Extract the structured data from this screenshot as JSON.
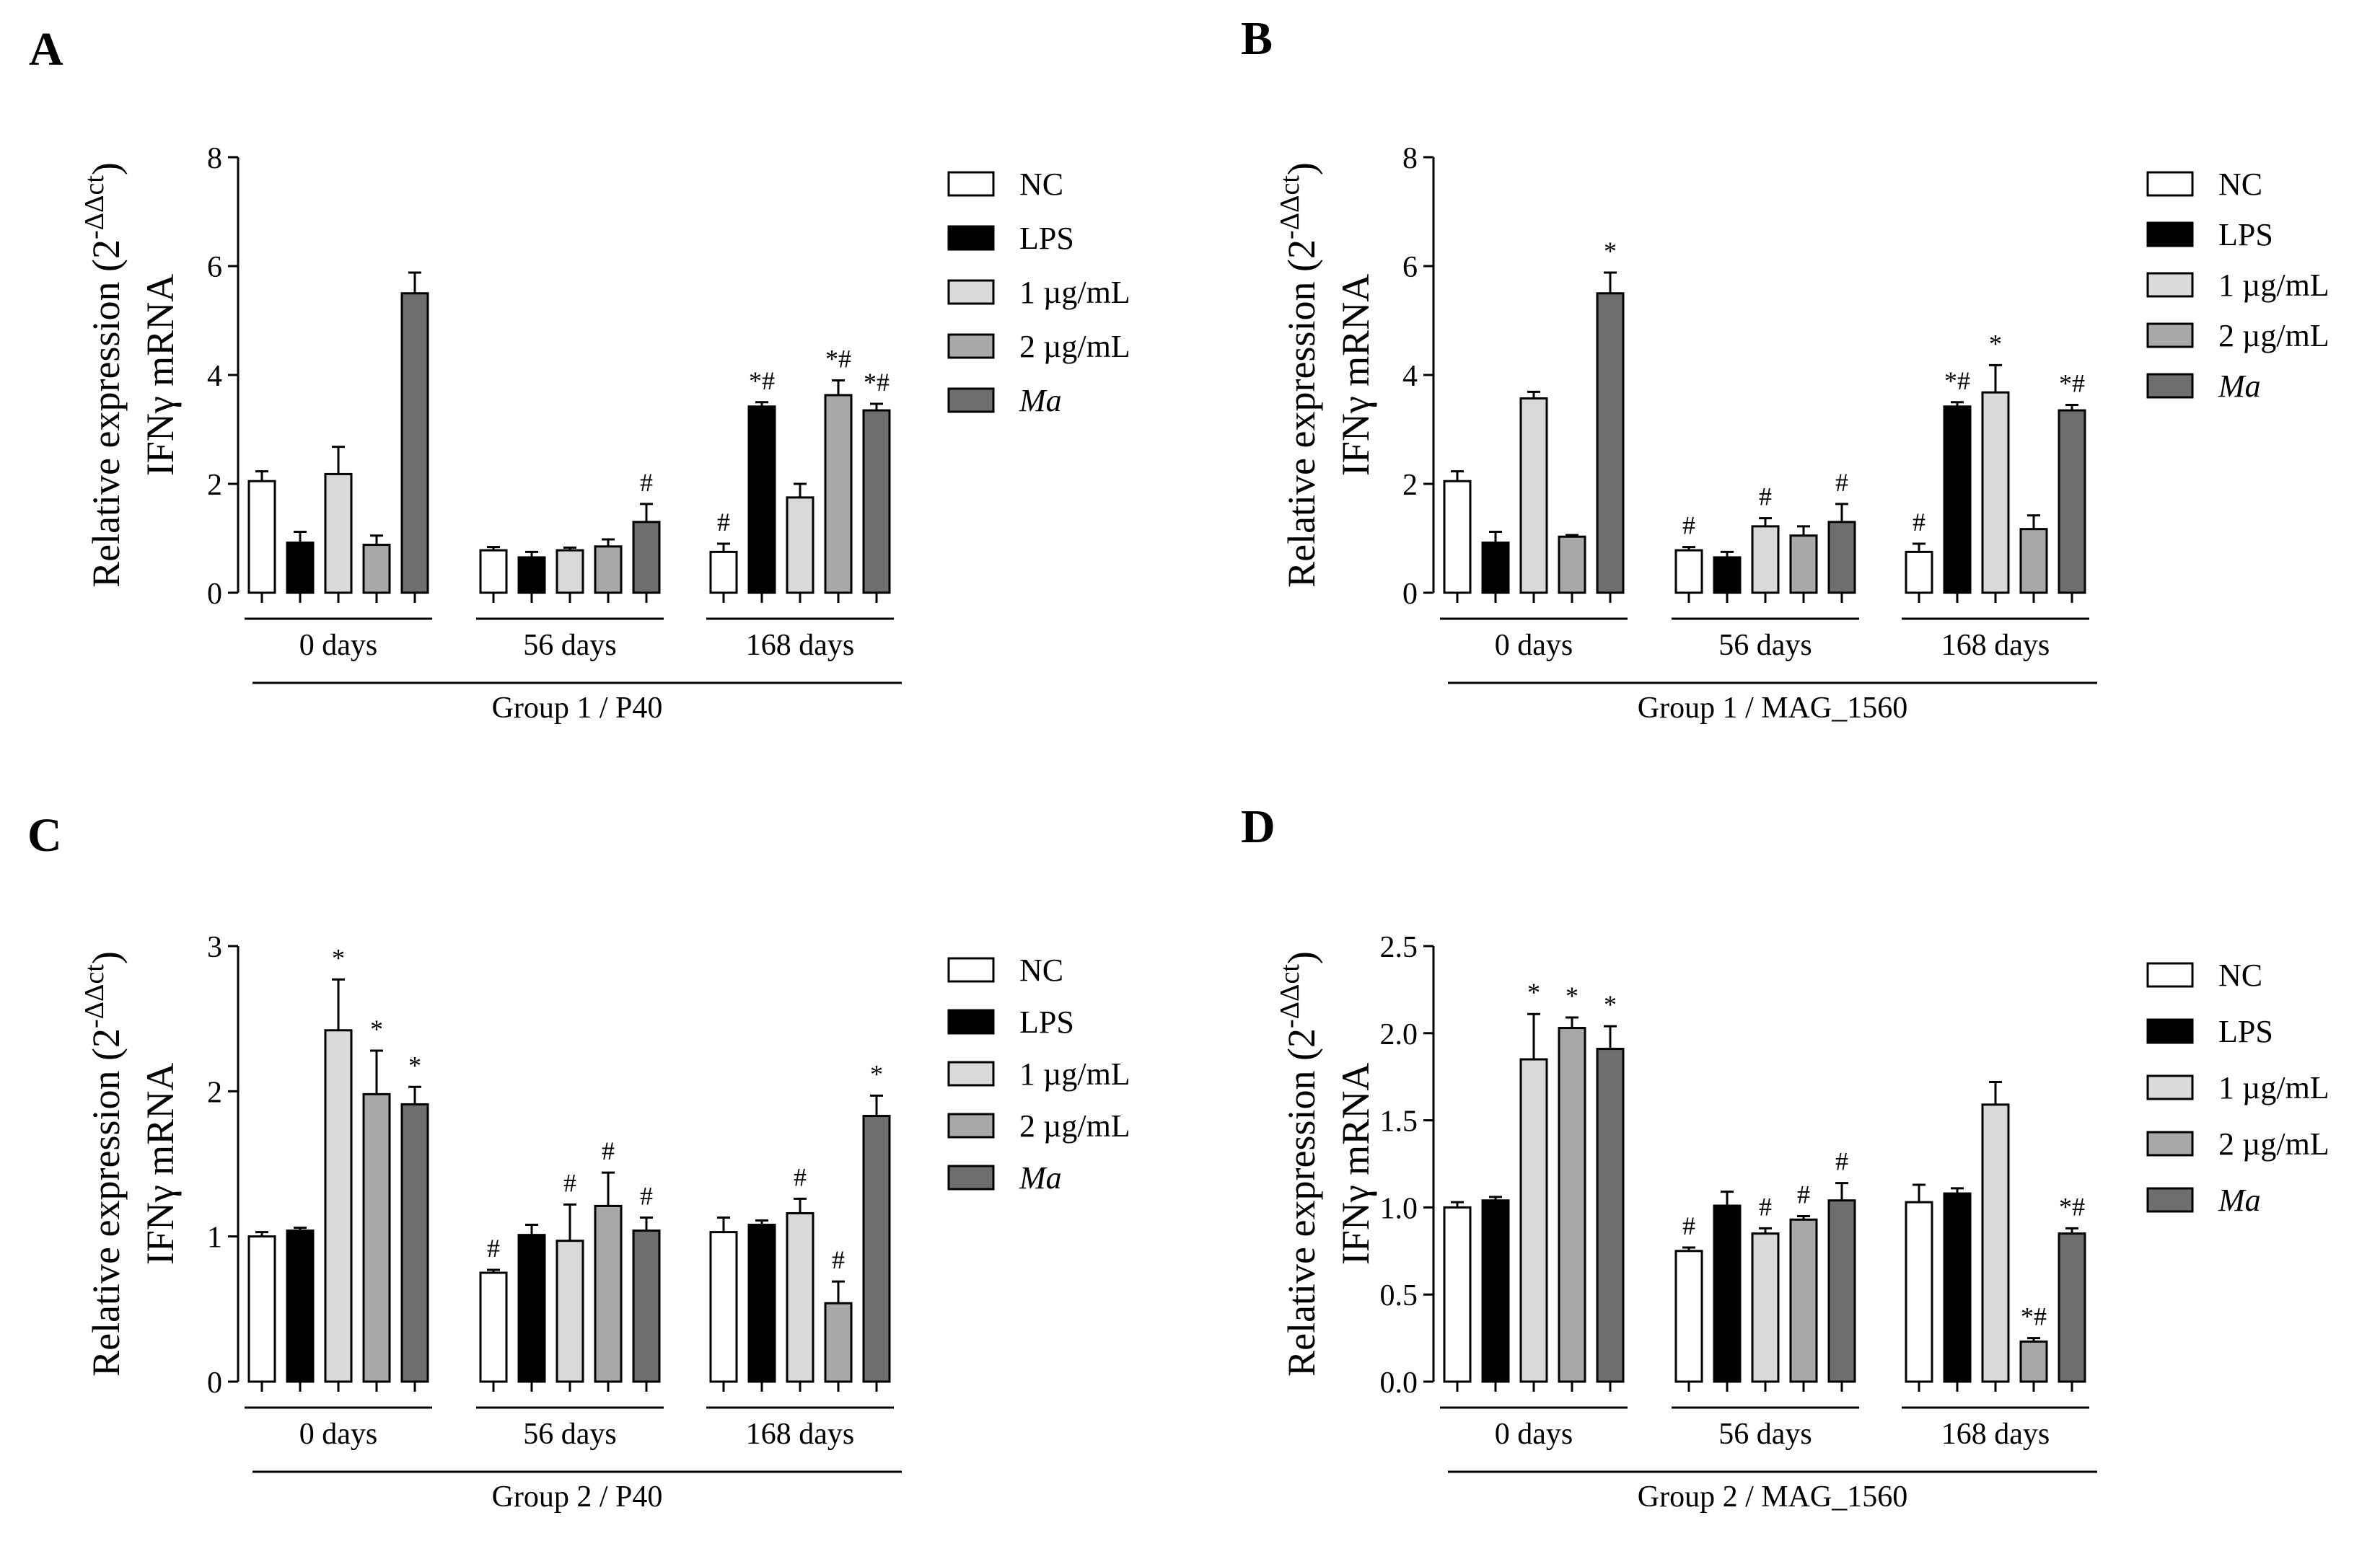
{
  "legend": [
    {
      "label": "NC",
      "color": "#ffffff",
      "italic": false
    },
    {
      "label": "LPS",
      "color": "#000000",
      "italic": false
    },
    {
      "label": "1 µg/mL",
      "color": "#d9d9d9",
      "italic": false
    },
    {
      "label": "2 µg/mL",
      "color": "#a8a8a8",
      "italic": false
    },
    {
      "label": "Ma",
      "color": "#6e6e6e",
      "italic": true
    }
  ],
  "chart_data": [
    {
      "panel": "A",
      "type": "bar",
      "ylabel_line1": "Relative expression (2",
      "ylabel_sup": "-ΔΔct",
      "ylabel_line1_end": ")",
      "ylabel_line2": "IFNγ mRNA",
      "ylim": [
        0,
        8
      ],
      "yticks": [
        "0",
        "2",
        "4",
        "6",
        "8"
      ],
      "tick_values": [
        0,
        2,
        4,
        6,
        8
      ],
      "categories": [
        "0 days",
        "56 days",
        "168 days"
      ],
      "group_label": "Group 1 / P40",
      "series": [
        {
          "name": "NC",
          "values": [
            2.05,
            0.78,
            0.75
          ],
          "errors": [
            0.18,
            0.06,
            0.15
          ],
          "marks": [
            "",
            "",
            "#"
          ]
        },
        {
          "name": "LPS",
          "values": [
            0.92,
            0.65,
            3.42
          ],
          "errors": [
            0.2,
            0.1,
            0.08
          ],
          "marks": [
            "",
            "",
            "*#"
          ]
        },
        {
          "name": "1 µg/mL",
          "values": [
            2.18,
            0.78,
            1.75
          ],
          "errors": [
            0.5,
            0.05,
            0.25
          ],
          "marks": [
            "",
            "",
            ""
          ]
        },
        {
          "name": "2 µg/mL",
          "values": [
            0.88,
            0.85,
            3.63
          ],
          "errors": [
            0.17,
            0.13,
            0.27
          ],
          "marks": [
            "",
            "",
            "*#"
          ]
        },
        {
          "name": "Ma",
          "values": [
            5.5,
            1.3,
            3.35
          ],
          "errors": [
            0.38,
            0.33,
            0.12
          ],
          "marks": [
            "",
            "#",
            "*#"
          ]
        }
      ]
    },
    {
      "panel": "B",
      "type": "bar",
      "ylabel_line1": "Relative expression (2",
      "ylabel_sup": "-ΔΔct",
      "ylabel_line1_end": ")",
      "ylabel_line2": "IFNγ mRNA",
      "ylim": [
        0,
        8
      ],
      "yticks": [
        "0",
        "2",
        "4",
        "6",
        "8"
      ],
      "tick_values": [
        0,
        2,
        4,
        6,
        8
      ],
      "categories": [
        "0 days",
        "56 days",
        "168 days"
      ],
      "group_label": "Group 1 / MAG_1560",
      "series": [
        {
          "name": "NC",
          "values": [
            2.05,
            0.78,
            0.75
          ],
          "errors": [
            0.18,
            0.06,
            0.15
          ],
          "marks": [
            "",
            "#",
            "#"
          ]
        },
        {
          "name": "LPS",
          "values": [
            0.92,
            0.65,
            3.42
          ],
          "errors": [
            0.2,
            0.1,
            0.08
          ],
          "marks": [
            "",
            "",
            "*#"
          ]
        },
        {
          "name": "1 µg/mL",
          "values": [
            3.57,
            1.22,
            3.68
          ],
          "errors": [
            0.12,
            0.15,
            0.5
          ],
          "marks": [
            "",
            "#",
            "*"
          ]
        },
        {
          "name": "2 µg/mL",
          "values": [
            1.03,
            1.05,
            1.17
          ],
          "errors": [
            0.03,
            0.17,
            0.25
          ],
          "marks": [
            "",
            "",
            ""
          ]
        },
        {
          "name": "Ma",
          "values": [
            5.5,
            1.3,
            3.35
          ],
          "errors": [
            0.38,
            0.33,
            0.1
          ],
          "marks": [
            "*",
            "#",
            "*#"
          ]
        }
      ]
    },
    {
      "panel": "C",
      "type": "bar",
      "ylabel_line1": "Relative expression (2",
      "ylabel_sup": "-ΔΔct",
      "ylabel_line1_end": ")",
      "ylabel_line2": "IFNγ mRNA",
      "ylim": [
        0,
        3
      ],
      "yticks": [
        "0",
        "1",
        "2",
        "3"
      ],
      "tick_values": [
        0,
        1,
        2,
        3
      ],
      "categories": [
        "0 days",
        "56 days",
        "168 days"
      ],
      "group_label": "Group 2 / P40",
      "series": [
        {
          "name": "NC",
          "values": [
            1.0,
            0.75,
            1.03
          ],
          "errors": [
            0.03,
            0.02,
            0.1
          ],
          "marks": [
            "",
            "#",
            ""
          ]
        },
        {
          "name": "LPS",
          "values": [
            1.04,
            1.01,
            1.08
          ],
          "errors": [
            0.02,
            0.07,
            0.03
          ],
          "marks": [
            "",
            "",
            ""
          ]
        },
        {
          "name": "1 µg/mL",
          "values": [
            2.42,
            0.97,
            1.16
          ],
          "errors": [
            0.35,
            0.25,
            0.1
          ],
          "marks": [
            "*",
            "#",
            "#"
          ]
        },
        {
          "name": "2 µg/mL",
          "values": [
            1.98,
            1.21,
            0.54
          ],
          "errors": [
            0.3,
            0.23,
            0.15
          ],
          "marks": [
            "*",
            "#",
            "#"
          ]
        },
        {
          "name": "Ma",
          "values": [
            1.91,
            1.04,
            1.83
          ],
          "errors": [
            0.12,
            0.09,
            0.14
          ],
          "marks": [
            "*",
            "#",
            "*"
          ]
        }
      ]
    },
    {
      "panel": "D",
      "type": "bar",
      "ylabel_line1": "Relative expression (2",
      "ylabel_sup": "-ΔΔct",
      "ylabel_line1_end": ")",
      "ylabel_line2": "IFNγ mRNA",
      "ylim": [
        0,
        2.5
      ],
      "yticks": [
        "0.0",
        "0.5",
        "1.0",
        "1.5",
        "2.0",
        "2.5"
      ],
      "tick_values": [
        0,
        0.5,
        1.0,
        1.5,
        2.0,
        2.5
      ],
      "categories": [
        "0 days",
        "56 days",
        "168 days"
      ],
      "group_label": "Group 2 / MAG_1560",
      "series": [
        {
          "name": "NC",
          "values": [
            1.0,
            0.75,
            1.03
          ],
          "errors": [
            0.03,
            0.02,
            0.1
          ],
          "marks": [
            "",
            "#",
            ""
          ]
        },
        {
          "name": "LPS",
          "values": [
            1.04,
            1.01,
            1.08
          ],
          "errors": [
            0.02,
            0.08,
            0.03
          ],
          "marks": [
            "",
            "",
            ""
          ]
        },
        {
          "name": "1 µg/mL",
          "values": [
            1.85,
            0.85,
            1.59
          ],
          "errors": [
            0.26,
            0.03,
            0.13
          ],
          "marks": [
            "*",
            "#",
            ""
          ]
        },
        {
          "name": "2 µg/mL",
          "values": [
            2.03,
            0.93,
            0.23
          ],
          "errors": [
            0.06,
            0.02,
            0.02
          ],
          "marks": [
            "*",
            "#",
            "*#"
          ]
        },
        {
          "name": "Ma",
          "values": [
            1.91,
            1.04,
            0.85
          ],
          "errors": [
            0.13,
            0.1,
            0.03
          ],
          "marks": [
            "*",
            "#",
            "*#"
          ]
        }
      ]
    }
  ]
}
